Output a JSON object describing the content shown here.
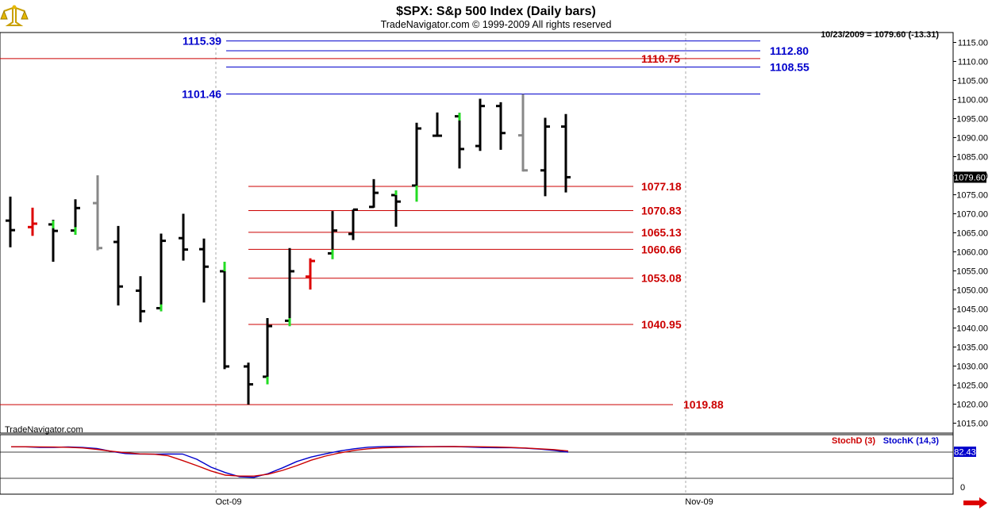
{
  "header": {
    "title": "$SPX:  S&p 500 Index  (Daily bars)",
    "subtitle": "TradeNavigator.com © 1999-2009 All rights reserved",
    "last_info": "10/23/2009 = 1079.60 (-13.31)"
  },
  "footer": {
    "watermark": "TradeNavigator.com",
    "x_labels": [
      "Oct-09",
      "Nov-09"
    ]
  },
  "colors": {
    "blue_level": "#0000cc",
    "red_level": "#cc0000",
    "bar_down": "#000000",
    "bar_up_green": "#22dd22",
    "bar_red": "#dd0000",
    "bar_grey": "#888888",
    "stoch_d": "#cc0000",
    "stoch_k": "#0000cc"
  },
  "chart_data": {
    "type": "ohlc",
    "y_axis": {
      "range": [
        1011,
        1119
      ],
      "ticks": [
        1015,
        1020,
        1025,
        1030,
        1035,
        1040,
        1045,
        1050,
        1055,
        1060,
        1065,
        1070,
        1075,
        1080,
        1085,
        1090,
        1095,
        1100,
        1105,
        1110,
        1115
      ],
      "tick_labels": [
        "1015.00",
        "1020.00",
        "1025.00",
        "1030.00",
        "1035.00",
        "1040.00",
        "1045.00",
        "1050.00",
        "1055.00",
        "1060.00",
        "1065.00",
        "1070.00",
        "1075.00",
        "1080.00",
        "1085.00",
        "1090.00",
        "1095.00",
        "1100.00",
        "1105.00",
        "1110.00",
        "1115.00"
      ],
      "last_price_label": "1079.60",
      "last_price": 1079.6
    },
    "x_axis": {
      "labels": [
        "Oct-09",
        "Nov-09"
      ]
    },
    "levels": [
      {
        "value": 1115.39,
        "label": "1115.39",
        "color": "blue",
        "label_side": "left"
      },
      {
        "value": 1112.8,
        "label": "1112.80",
        "color": "blue",
        "label_side": "right"
      },
      {
        "value": 1110.75,
        "label": "1110.75",
        "color": "red",
        "label_side": "right"
      },
      {
        "value": 1108.55,
        "label": "1108.55",
        "color": "blue",
        "label_side": "right"
      },
      {
        "value": 1101.46,
        "label": "1101.46",
        "color": "blue",
        "label_side": "left"
      },
      {
        "value": 1077.18,
        "label": "1077.18",
        "color": "red",
        "label_side": "right"
      },
      {
        "value": 1070.83,
        "label": "1070.83",
        "color": "red",
        "label_side": "right"
      },
      {
        "value": 1065.13,
        "label": "1065.13",
        "color": "red",
        "label_side": "right"
      },
      {
        "value": 1060.66,
        "label": "1060.66",
        "color": "red",
        "label_side": "right"
      },
      {
        "value": 1053.08,
        "label": "1053.08",
        "color": "red",
        "label_side": "right"
      },
      {
        "value": 1040.95,
        "label": "1040.95",
        "color": "red",
        "label_side": "right"
      },
      {
        "value": 1019.88,
        "label": "1019.88",
        "color": "red",
        "label_side": "right"
      }
    ],
    "bars": [
      {
        "o": 1068.2,
        "h": 1074.5,
        "l": 1061.2,
        "c": 1065.7,
        "color": "black"
      },
      {
        "o": 1066.5,
        "h": 1071.6,
        "l": 1064.2,
        "c": 1067.4,
        "color": "red"
      },
      {
        "o": 1067.2,
        "h": 1068.4,
        "l": 1057.4,
        "c": 1065.5,
        "color": "black"
      },
      {
        "o": 1065.6,
        "h": 1073.8,
        "l": 1064.5,
        "c": 1071.5,
        "color": "black"
      },
      {
        "o": 1072.8,
        "h": 1080.1,
        "l": 1060.4,
        "c": 1061.0,
        "color": "grey"
      },
      {
        "o": 1062.6,
        "h": 1066.8,
        "l": 1045.9,
        "c": 1050.9,
        "color": "black"
      },
      {
        "o": 1049.8,
        "h": 1053.6,
        "l": 1041.5,
        "c": 1044.4,
        "color": "black"
      },
      {
        "o": 1045.2,
        "h": 1064.8,
        "l": 1044.4,
        "c": 1062.9,
        "color": "black"
      },
      {
        "o": 1063.6,
        "h": 1070.0,
        "l": 1057.7,
        "c": 1060.6,
        "color": "black"
      },
      {
        "o": 1060.7,
        "h": 1063.5,
        "l": 1046.7,
        "c": 1056.1,
        "color": "black"
      },
      {
        "o": 1054.9,
        "h": 1057.4,
        "l": 1029.2,
        "c": 1029.9,
        "color": "black"
      },
      {
        "o": 1029.9,
        "h": 1030.9,
        "l": 1019.9,
        "c": 1025.2,
        "color": "black"
      },
      {
        "o": 1027.2,
        "h": 1042.6,
        "l": 1025.2,
        "c": 1040.5,
        "color": "black"
      },
      {
        "o": 1041.9,
        "h": 1061.0,
        "l": 1040.5,
        "c": 1054.9,
        "color": "black"
      },
      {
        "o": 1053.5,
        "h": 1058.3,
        "l": 1050.1,
        "c": 1057.6,
        "color": "red"
      },
      {
        "o": 1059.6,
        "h": 1070.7,
        "l": 1058.1,
        "c": 1065.6,
        "color": "black"
      },
      {
        "o": 1064.7,
        "h": 1071.1,
        "l": 1063.1,
        "c": 1071.1,
        "color": "black"
      },
      {
        "o": 1071.8,
        "h": 1079.1,
        "l": 1071.6,
        "c": 1075.5,
        "color": "black"
      },
      {
        "o": 1074.9,
        "h": 1076.1,
        "l": 1066.6,
        "c": 1073.2,
        "color": "black"
      },
      {
        "o": 1077.4,
        "h": 1093.9,
        "l": 1073.2,
        "c": 1092.4,
        "color": "black"
      },
      {
        "o": 1090.5,
        "h": 1096.6,
        "l": 1090.3,
        "c": 1090.5,
        "color": "black"
      },
      {
        "o": 1095.6,
        "h": 1096.5,
        "l": 1081.9,
        "c": 1087.0,
        "color": "black"
      },
      {
        "o": 1087.8,
        "h": 1100.2,
        "l": 1086.5,
        "c": 1098.3,
        "color": "black"
      },
      {
        "o": 1098.3,
        "h": 1099.3,
        "l": 1086.8,
        "c": 1091.2,
        "color": "black"
      },
      {
        "o": 1090.6,
        "h": 1101.4,
        "l": 1081.1,
        "c": 1081.4,
        "color": "grey"
      },
      {
        "o": 1081.4,
        "h": 1095.2,
        "l": 1074.6,
        "c": 1092.9,
        "color": "black"
      },
      {
        "o": 1092.9,
        "h": 1096.2,
        "l": 1075.6,
        "c": 1079.6,
        "color": "black"
      }
    ],
    "green_ticks": [
      {
        "bar": 2,
        "from": 1068.2,
        "to": 1066.2
      },
      {
        "bar": 3,
        "from": 1066.5,
        "to": 1064.5
      },
      {
        "bar": 7,
        "from": 1046.2,
        "to": 1044.4
      },
      {
        "bar": 10,
        "from": 1057.4,
        "to": 1054.9
      },
      {
        "bar": 12,
        "from": 1027.2,
        "to": 1025.2
      },
      {
        "bar": 13,
        "from": 1042.6,
        "to": 1040.5
      },
      {
        "bar": 15,
        "from": 1060.6,
        "to": 1058.1
      },
      {
        "bar": 18,
        "from": 1076.1,
        "to": 1074.9
      },
      {
        "bar": 19,
        "from": 1077.4,
        "to": 1073.2
      },
      {
        "bar": 21,
        "from": 1096.5,
        "to": 1094.5
      }
    ],
    "stochastic": {
      "legend_d": "StochD (3)",
      "legend_k": "StochK (14,3)",
      "last_value_label": "82.43",
      "zero_label": "0",
      "range": [
        0,
        100
      ],
      "ref_line": 82.43,
      "d": [
        99.5,
        99.5,
        99.1,
        98.6,
        97.7,
        95.8,
        91.2,
        85.5,
        80.7,
        76.9,
        76.0,
        71.0,
        56.0,
        40.0,
        23.0,
        10.0,
        7.0,
        7.0,
        13.0,
        25.0,
        40.0,
        57.0,
        70.0,
        80.0,
        88.0,
        93.0,
        96.0,
        97.5,
        98.5,
        99.3,
        99.7,
        99.9,
        99.7,
        99.3,
        98.5,
        97.2,
        95.5,
        93.0,
        90.5,
        86.0
      ],
      "k": [
        99.5,
        99.2,
        97.5,
        97.5,
        98.7,
        97.2,
        94.0,
        85.0,
        78.0,
        76.5,
        76.0,
        76.7,
        76.5,
        60.0,
        35.0,
        18.0,
        5.0,
        3.0,
        15.0,
        33.0,
        53.0,
        67.0,
        77.0,
        86.0,
        93.0,
        98.0,
        99.8,
        99.9,
        100.0,
        99.8,
        99.9,
        100.0,
        98.5,
        97.0,
        96.5,
        96.5,
        95.0,
        92.0,
        88.0,
        82.43
      ]
    }
  }
}
